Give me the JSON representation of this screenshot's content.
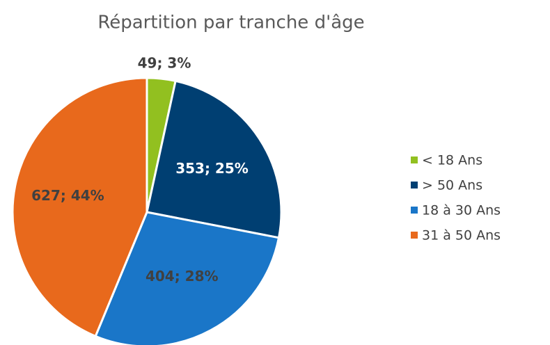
{
  "chart_data": {
    "type": "pie",
    "title": "Répartition par tranche d'âge",
    "categories": [
      "< 18 Ans",
      "> 50 Ans",
      "18 à  30 Ans",
      "31 à  50 Ans"
    ],
    "values": [
      49,
      353,
      404,
      627
    ],
    "value_labels": [
      "49; 3%",
      "353; 25%",
      "404; 28%",
      "627; 44%"
    ],
    "colors": [
      "#92c020",
      "#003f72",
      "#1a76c8",
      "#e8691c"
    ],
    "legend": "right"
  }
}
